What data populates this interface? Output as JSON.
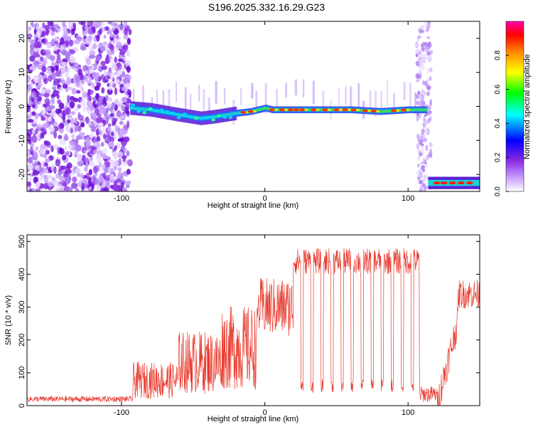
{
  "title": "S196.2025.332.16.29.G23",
  "chart_data": [
    {
      "type": "heatmap",
      "name": "spectrogram",
      "xlabel": "Height of straight line (km)",
      "ylabel": "Frequency (Hz)",
      "xlim": [
        -166,
        150
      ],
      "ylim": [
        -25,
        25
      ],
      "xticks": [
        -100,
        0,
        100
      ],
      "yticks": [
        20,
        10,
        0,
        -10,
        -20
      ],
      "colorbar": {
        "label": "Normalized spectral amplitude",
        "range": [
          0,
          1
        ],
        "ticks": [
          "0.0",
          "0.2",
          "0.4",
          "0.6",
          "0.8"
        ],
        "colors": [
          "#ffffff",
          "#8a2be2",
          "#0000ff",
          "#00ffff",
          "#00ff00",
          "#ffff00",
          "#ff8800",
          "#ff0000",
          "#ff00aa"
        ]
      },
      "features": [
        {
          "name": "scattered-noise",
          "x_range": [
            -166,
            -94
          ],
          "freq_range": [
            -25,
            25
          ],
          "level": 0.15
        },
        {
          "name": "tone-main",
          "x": [
            -94,
            -80,
            -60,
            -45,
            -35,
            -20,
            -10,
            0,
            5,
            20,
            40,
            60,
            80,
            100,
            112
          ],
          "freq": [
            -0.5,
            -1,
            -2.5,
            -3.5,
            -3,
            -2,
            -1.5,
            -0.5,
            -1,
            -1,
            -1,
            -1,
            -1.5,
            -1,
            -1
          ]
        },
        {
          "name": "tone-shifted",
          "x_range": [
            114,
            150
          ],
          "freq": -22.5
        },
        {
          "name": "noise-column",
          "x_range": [
            106,
            116
          ],
          "freq_range": [
            -25,
            25
          ]
        }
      ]
    },
    {
      "type": "line",
      "name": "snr",
      "xlabel": "Height of straight line (km)",
      "ylabel": "SNR (10 * v/v)",
      "xlim": [
        -166,
        150
      ],
      "ylim": [
        0,
        520
      ],
      "xticks": [
        -100,
        0,
        100
      ],
      "yticks": [
        0,
        100,
        200,
        300,
        400,
        500
      ],
      "color": "#e8382b",
      "segments": [
        {
          "x_range": [
            -166,
            -92
          ],
          "level": 20
        },
        {
          "x_range": [
            -92,
            -60
          ],
          "level": 70
        },
        {
          "x_range": [
            -60,
            -30
          ],
          "level": 120
        },
        {
          "x_range": [
            -30,
            -5
          ],
          "level": 160
        },
        {
          "x_range": [
            -5,
            20
          ],
          "level": 300
        },
        {
          "x_range": [
            20,
            108
          ],
          "level": 440
        },
        {
          "x_range": [
            108,
            120
          ],
          "level": 30
        },
        {
          "x_range": [
            120,
            135
          ],
          "level": 250
        },
        {
          "x_range": [
            135,
            150
          ],
          "level": 340
        }
      ]
    }
  ]
}
